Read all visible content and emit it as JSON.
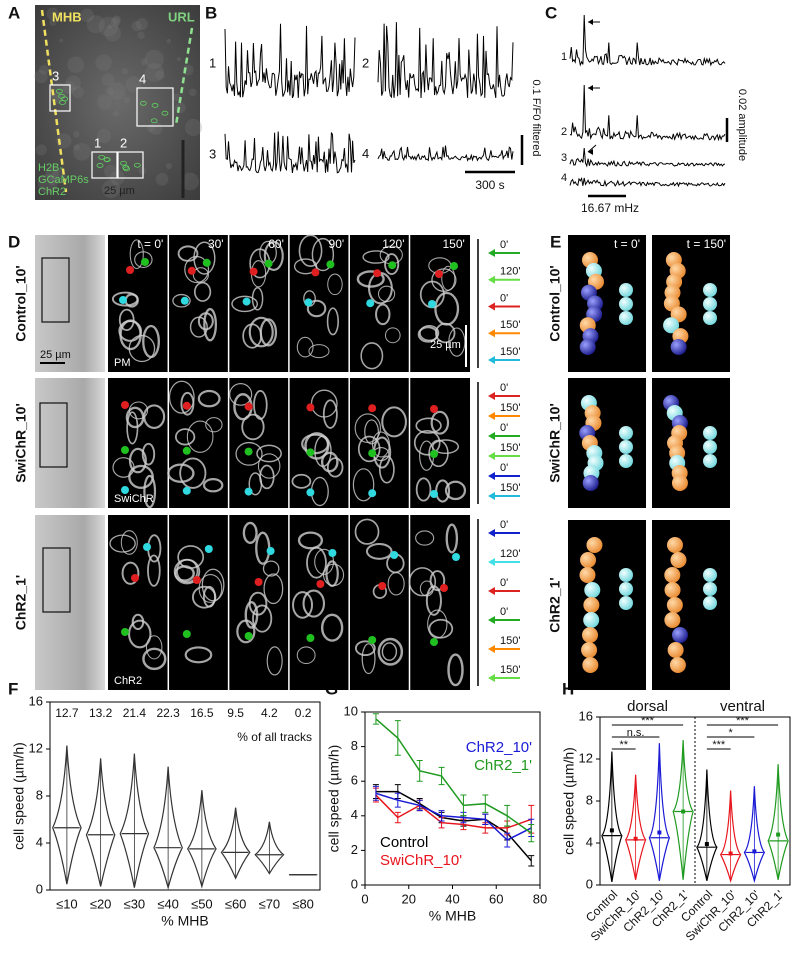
{
  "panels": [
    {
      "letter": "A",
      "mhb": "MHB",
      "url": "URL",
      "rois": [
        "3",
        "4",
        "1",
        "2"
      ],
      "legend": [
        "H2B-",
        "GCaMP6s",
        "ChR2"
      ],
      "scale": "25 µm"
    },
    {
      "letter": "B",
      "traces": [
        "1",
        "2",
        "3",
        "4"
      ],
      "y_scale": "0.1 F/F0 filtered",
      "x_scale": "300 s"
    },
    {
      "letter": "C",
      "spectra": [
        "1",
        "2",
        "3",
        "4"
      ],
      "y_scale": "0.02 amplitude",
      "x_scale": "16.67 mHz"
    },
    {
      "letter": "D",
      "times": [
        "t = 0'",
        "30'",
        "60'",
        "90'",
        "120'",
        "150'"
      ],
      "scale_left": "25 µm",
      "scale_right": "25 µm",
      "rows": [
        {
          "label": "Control_10'",
          "channel": "PM",
          "arrows": [
            {
              "label": "0'",
              "color": "#22aa22"
            },
            {
              "label": "120'",
              "color": "#66dd44"
            },
            {
              "label": "0'",
              "color": "#dd2222"
            },
            {
              "label": "150'",
              "color": "#ff8800"
            },
            {
              "label": "150'",
              "color": "#22bbdd"
            }
          ]
        },
        {
          "label": "SwiChR_10'",
          "channel": "SwiChR",
          "arrows": [
            {
              "label": "0'",
              "color": "#dd2222"
            },
            {
              "label": "150'",
              "color": "#ff8800"
            },
            {
              "label": "0'",
              "color": "#22aa22"
            },
            {
              "label": "150'",
              "color": "#66dd44"
            },
            {
              "label": "0'",
              "color": "#1122cc"
            },
            {
              "label": "150'",
              "color": "#22bbdd"
            }
          ]
        },
        {
          "label": "ChR2_1'",
          "channel": "ChR2",
          "arrows": [
            {
              "label": "0'",
              "color": "#1122cc"
            },
            {
              "label": "120'",
              "color": "#44e0e8"
            },
            {
              "label": "0'",
              "color": "#dd2222"
            },
            {
              "label": "0'",
              "color": "#22aa22"
            },
            {
              "label": "150'",
              "color": "#ff8800"
            },
            {
              "label": "150'",
              "color": "#66dd44"
            }
          ]
        }
      ]
    },
    {
      "letter": "E",
      "times": [
        "t = 0'",
        "t = 150'"
      ],
      "rows": [
        "Control_10'",
        "SwiChR_10'",
        "ChR2_1'"
      ]
    }
  ],
  "chart_data": [
    {
      "type": "violin",
      "panel": "F",
      "ylabel": "cell speed (µm/h)",
      "xlabel": "% MHB",
      "categories": [
        "≤10",
        "≤20",
        "≤30",
        "≤40",
        "≤50",
        "≤60",
        "≤70",
        "≤80"
      ],
      "track_percent": [
        12.7,
        13.2,
        21.4,
        22.3,
        16.5,
        9.5,
        4.2,
        0.2
      ],
      "track_note": "% of all tracks",
      "color": "#333333",
      "min": [
        0.5,
        0.3,
        0.2,
        0.2,
        0.3,
        1.0,
        1.4,
        1.3
      ],
      "q1": [
        3.8,
        3.0,
        3.2,
        2.4,
        2.5,
        2.4,
        2.4,
        1.3
      ],
      "median": [
        5.3,
        4.7,
        4.8,
        3.6,
        3.5,
        3.2,
        3.0,
        1.3
      ],
      "q3": [
        7.2,
        6.5,
        6.6,
        5.7,
        4.8,
        4.2,
        3.7,
        1.3
      ],
      "max": [
        12.3,
        11.2,
        11.6,
        10.5,
        8.5,
        7.0,
        5.8,
        1.3
      ],
      "ylim": [
        0,
        16
      ],
      "yticks": [
        0,
        4,
        8,
        12,
        16
      ]
    },
    {
      "type": "line",
      "panel": "G",
      "ylabel": "cell speed (µm/h)",
      "xlabel": "% MHB",
      "x": [
        5,
        15,
        25,
        35,
        45,
        55,
        65,
        76
      ],
      "series": [
        {
          "name": "Control",
          "color": "#000000",
          "values": [
            5.4,
            5.4,
            4.7,
            3.9,
            3.7,
            3.8,
            3.0,
            1.4
          ],
          "errors": [
            0.4,
            0.4,
            0.3,
            0.3,
            0.3,
            0.3,
            0.4,
            0.3
          ]
        },
        {
          "name": "SwiChR_10'",
          "color": "#e8141c",
          "values": [
            5.2,
            3.9,
            4.6,
            3.6,
            3.5,
            3.3,
            3.3,
            3.8
          ],
          "errors": [
            0.4,
            0.3,
            0.3,
            0.3,
            0.3,
            0.3,
            0.4,
            0.8
          ]
        },
        {
          "name": "ChR2_10'",
          "color": "#1a1ad6",
          "values": [
            5.3,
            4.9,
            4.6,
            4.0,
            3.9,
            3.8,
            2.6,
            3.3
          ],
          "errors": [
            0.4,
            0.4,
            0.3,
            0.3,
            0.3,
            0.3,
            0.4,
            0.5
          ]
        },
        {
          "name": "ChR2_1'",
          "color": "#1f9a1f",
          "values": [
            9.6,
            8.5,
            6.6,
            6.3,
            4.6,
            4.7,
            4.0,
            3.0
          ],
          "errors": [
            0.3,
            1.0,
            0.6,
            0.5,
            0.6,
            0.5,
            0.6,
            0.5
          ]
        }
      ],
      "xlim": [
        0,
        80
      ],
      "xticks": [
        0,
        20,
        40,
        60,
        80
      ],
      "ylim": [
        0,
        10
      ],
      "yticks": [
        0,
        2,
        4,
        6,
        8,
        10
      ]
    },
    {
      "type": "violin",
      "panel": "H",
      "ylabel": "cell speed (µm/h)",
      "groups": [
        "dorsal",
        "ventral"
      ],
      "categories": [
        "Control",
        "SwiChR_10'",
        "ChR2_10'",
        "ChR2_1'",
        "Control",
        "SwiChR_10'",
        "ChR2_10'",
        "ChR2_1'"
      ],
      "colors": [
        "#000000",
        "#e8141c",
        "#1a1ad6",
        "#1f9a1f",
        "#000000",
        "#e8141c",
        "#1a1ad6",
        "#1f9a1f"
      ],
      "significance": [
        null,
        "**",
        "n.s.",
        "***",
        null,
        "***",
        "*",
        "***"
      ],
      "min": [
        0.3,
        0.5,
        0.4,
        0.5,
        0.4,
        0.4,
        0.4,
        0.5
      ],
      "q1": [
        3.3,
        3.0,
        3.1,
        5.3,
        2.6,
        2.0,
        2.2,
        3.0
      ],
      "median": [
        4.7,
        4.3,
        4.5,
        7.0,
        3.6,
        2.9,
        3.1,
        4.2
      ],
      "mean": [
        5.2,
        4.4,
        5.0,
        7.0,
        3.9,
        3.0,
        3.2,
        4.8
      ],
      "q3": [
        5.6,
        5.3,
        5.6,
        8.0,
        4.4,
        3.7,
        4.0,
        5.6
      ],
      "max": [
        12.7,
        10.5,
        13.5,
        13.8,
        11.0,
        9.0,
        9.4,
        11.5
      ],
      "ylim": [
        0,
        16
      ],
      "yticks": [
        0,
        4,
        8,
        12,
        16
      ]
    }
  ]
}
